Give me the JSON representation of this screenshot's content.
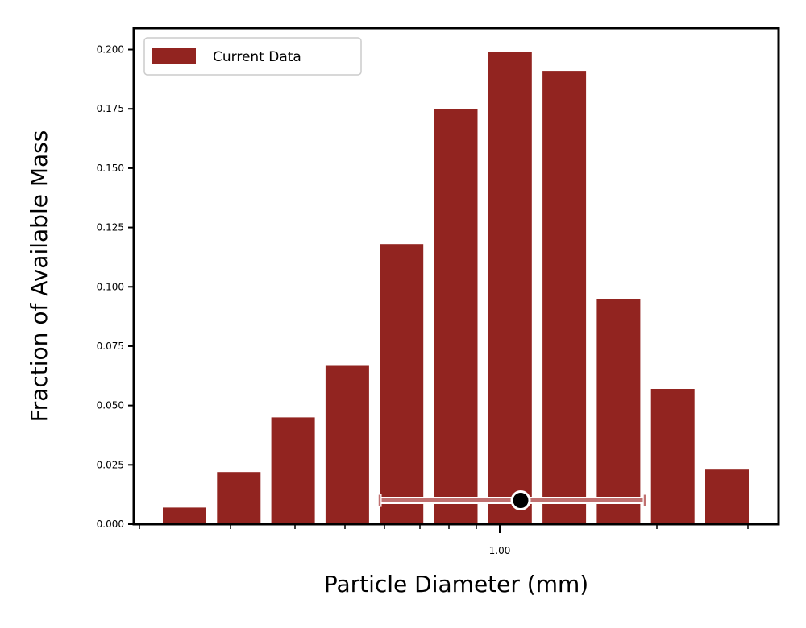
{
  "chart_data": {
    "type": "bar",
    "title": "",
    "xlabel": "Particle Diameter (mm)",
    "ylabel": "Fraction of Available Mass",
    "x_scale": "log",
    "ylim": [
      0,
      0.209
    ],
    "yticks": [
      0.0,
      0.025,
      0.05,
      0.075,
      0.1,
      0.125,
      0.15,
      0.175,
      0.2
    ],
    "ytick_labels": [
      "0.000",
      "0.025",
      "0.050",
      "0.075",
      "0.100",
      "0.125",
      "0.150",
      "0.175",
      "0.200"
    ],
    "xtick_labels": [
      {
        "value": 1.0,
        "label": "1.00"
      }
    ],
    "grid": false,
    "legend": {
      "position": "top-left"
    },
    "series": [
      {
        "name": "Current Data",
        "color": "#922420",
        "values": [
          0.007,
          0.022,
          0.045,
          0.067,
          0.118,
          0.175,
          0.199,
          0.191,
          0.095,
          0.057,
          0.023
        ]
      }
    ],
    "summary_marker": {
      "y": 0.01,
      "color": "#c07070",
      "marker_color": "#000000"
    }
  }
}
